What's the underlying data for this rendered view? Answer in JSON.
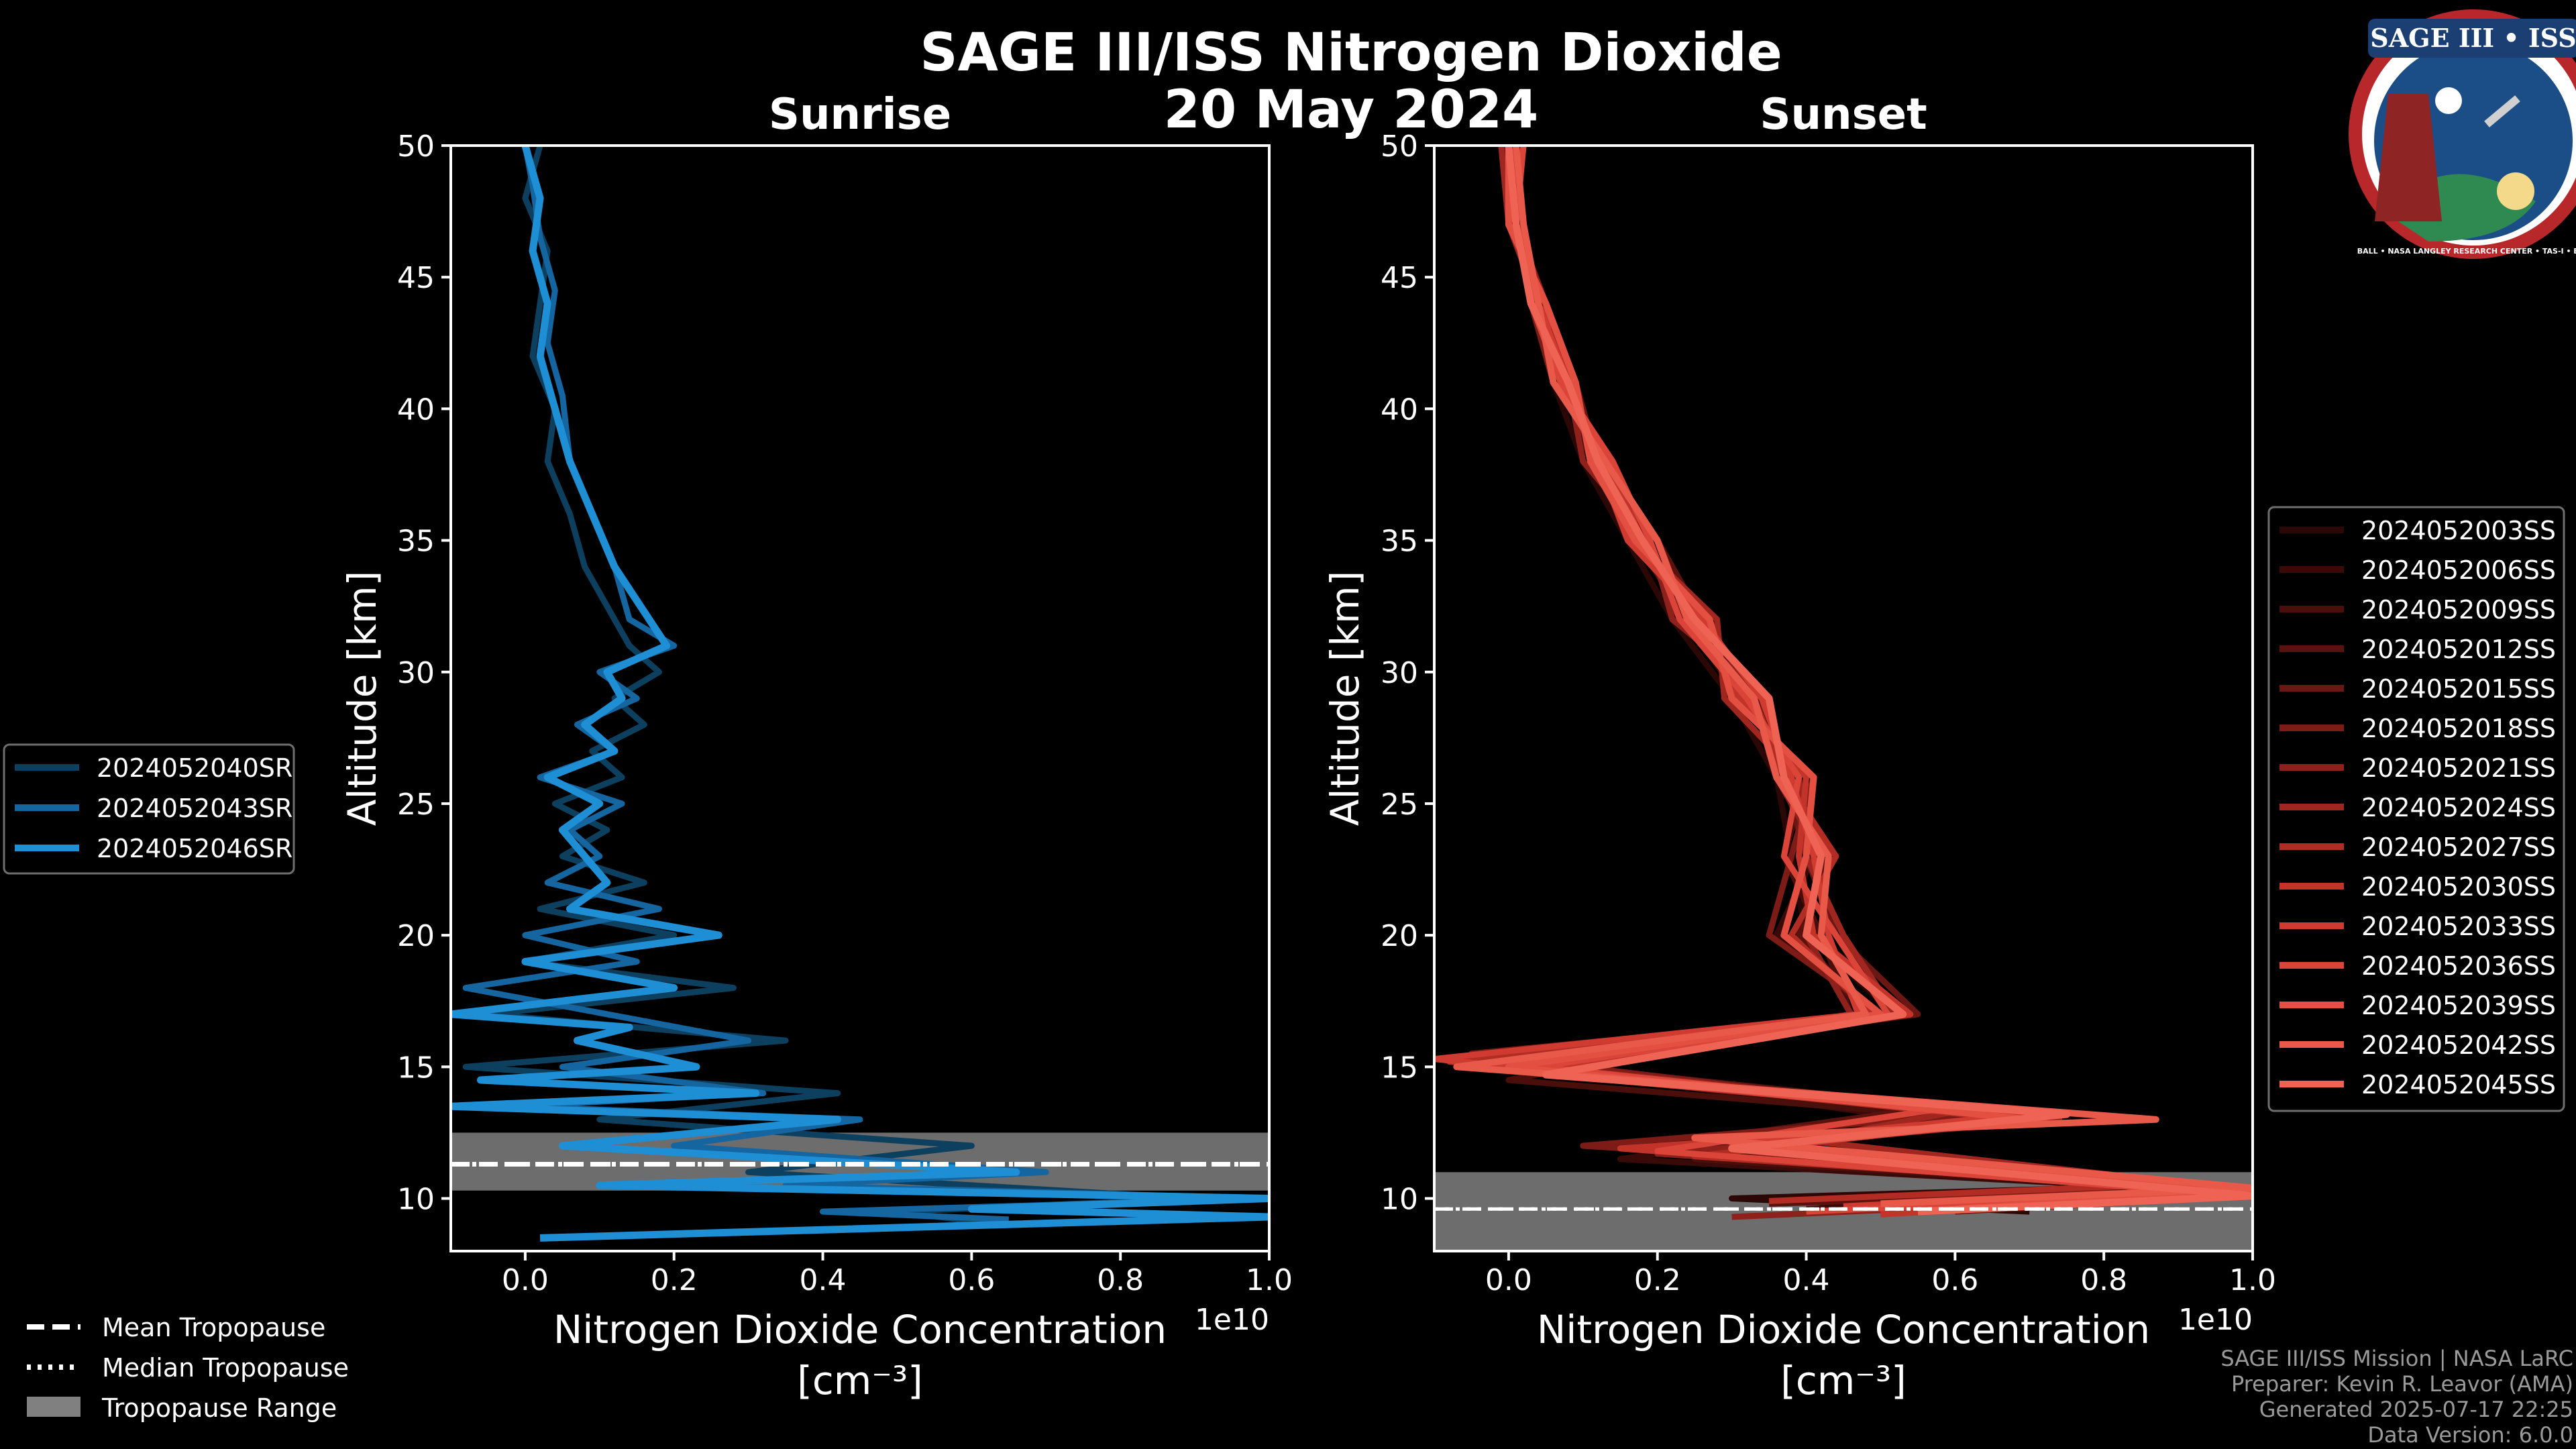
{
  "figure": {
    "title_line1": "SAGE III/ISS Nitrogen Dioxide",
    "title_line2": "20 May 2024",
    "footer": [
      "SAGE III/ISS Mission | NASA LaRC",
      "Preparer: Kevin R. Leavor (AMA)",
      "Generated 2025-07-17 22:25",
      "Data Version: 6.0.0"
    ]
  },
  "logo": {
    "text_top": "SAGE III • ISS",
    "text_ring": "BALL • NASA LANGLEY RESEARCH CENTER • TAS-I • ESA"
  },
  "tropopause_legend": [
    {
      "label": "Mean Tropopause",
      "style": "dashed"
    },
    {
      "label": "Median Tropopause",
      "style": "dotted"
    },
    {
      "label": "Tropopause Range",
      "style": "patch"
    }
  ],
  "chart_data": [
    {
      "type": "line",
      "title": "Sunrise",
      "xlabel_line1": "Nitrogen Dioxide Concentration",
      "xlabel_line2": "[cm⁻³]",
      "x_offset_text": "1e10",
      "ylabel": "Altitude [km]",
      "xlim": [
        -0.1,
        1.0
      ],
      "ylim": [
        8,
        50
      ],
      "xticks": [
        0.0,
        0.2,
        0.4,
        0.6,
        0.8,
        1.0
      ],
      "xtick_labels": [
        "0.0",
        "0.2",
        "0.4",
        "0.6",
        "0.8",
        "1.0"
      ],
      "yticks": [
        10,
        15,
        20,
        25,
        30,
        35,
        40,
        45,
        50
      ],
      "ytick_labels": [
        "10",
        "15",
        "20",
        "25",
        "30",
        "35",
        "40",
        "45",
        "50"
      ],
      "tropopause": {
        "mean": 11.3,
        "median": 11.3,
        "range": [
          10.3,
          12.5
        ]
      },
      "series": [
        {
          "name": "2024052040SR",
          "color": "#0d3f5e",
          "width": 9,
          "x": [
            0.02,
            0.0,
            0.03,
            0.02,
            0.01,
            0.04,
            0.03,
            0.06,
            0.08,
            0.12,
            0.14,
            0.18,
            0.12,
            0.16,
            0.09,
            0.13,
            0.04,
            0.11,
            0.05,
            0.16,
            0.02,
            0.2,
            0.0,
            0.28,
            -0.05,
            0.35,
            -0.08,
            0.42,
            0.1,
            0.6,
            0.3,
            0.9,
            0.5,
            0.64
          ],
          "y": [
            50,
            48,
            46,
            44,
            42,
            40,
            38,
            36,
            34,
            32,
            31,
            30,
            29,
            28,
            27,
            26,
            25,
            24,
            23,
            22,
            21,
            20,
            19,
            18,
            17,
            16,
            15,
            14,
            13,
            12,
            11,
            10,
            9.5,
            9
          ]
        },
        {
          "name": "2024052043SR",
          "color": "#1565a0",
          "width": 9,
          "x": [
            0.0,
            0.01,
            0.02,
            0.04,
            0.03,
            0.05,
            0.06,
            0.09,
            0.12,
            0.14,
            0.2,
            0.1,
            0.15,
            0.07,
            0.12,
            0.02,
            0.13,
            0.06,
            0.1,
            0.03,
            0.18,
            0.0,
            0.15,
            -0.08,
            0.3,
            0.05,
            0.32,
            -0.02,
            0.45,
            0.2,
            0.7,
            0.35,
            1.0,
            0.4,
            0.65
          ],
          "y": [
            50,
            48.5,
            46.5,
            44.5,
            42.5,
            40.5,
            38,
            36,
            34,
            32,
            31,
            30,
            29,
            28,
            27,
            26,
            25,
            24,
            23,
            22,
            21,
            20,
            19,
            18,
            16,
            15,
            14,
            13.5,
            13,
            12,
            11,
            10.5,
            10,
            9.5,
            9.2
          ]
        },
        {
          "name": "2024052046SR",
          "color": "#1e8fd4",
          "width": 11,
          "x": [
            0.0,
            0.02,
            0.01,
            0.03,
            0.02,
            0.04,
            0.06,
            0.09,
            0.12,
            0.19,
            0.11,
            0.13,
            0.08,
            0.12,
            0.03,
            0.1,
            0.05,
            0.11,
            0.06,
            0.26,
            0.0,
            0.2,
            -0.1,
            0.14,
            0.07,
            0.23,
            -0.06,
            0.31,
            -0.1,
            0.42,
            0.05,
            0.66,
            0.1,
            1.0,
            0.6,
            1.0,
            0.02
          ],
          "y": [
            50,
            48,
            46,
            44,
            42,
            40,
            38,
            36,
            34,
            31,
            30,
            29,
            28,
            27,
            26,
            25,
            24,
            22,
            21,
            20,
            19,
            18,
            17,
            16.5,
            16,
            15,
            14.5,
            14,
            13.5,
            13,
            12,
            11,
            10.5,
            10,
            9.6,
            9.3,
            8.5
          ]
        }
      ]
    },
    {
      "type": "line",
      "title": "Sunset",
      "xlabel_line1": "Nitrogen Dioxide Concentration",
      "xlabel_line2": "[cm⁻³]",
      "x_offset_text": "1e10",
      "ylabel": "Altitude [km]",
      "xlim": [
        -0.1,
        1.0
      ],
      "ylim": [
        8,
        50
      ],
      "xticks": [
        0.0,
        0.2,
        0.4,
        0.6,
        0.8,
        1.0
      ],
      "xtick_labels": [
        "0.0",
        "0.2",
        "0.4",
        "0.6",
        "0.8",
        "1.0"
      ],
      "yticks": [
        10,
        15,
        20,
        25,
        30,
        35,
        40,
        45,
        50
      ],
      "ytick_labels": [
        "10",
        "15",
        "20",
        "25",
        "30",
        "35",
        "40",
        "45",
        "50"
      ],
      "tropopause": {
        "mean": 9.6,
        "median": 9.6,
        "range": [
          8.0,
          11.0
        ]
      },
      "series": [
        {
          "name": "2024052003SS",
          "color": "#2b0705",
          "width": 9,
          "x": [
            0.0,
            0.01,
            0.03,
            0.06,
            0.1,
            0.16,
            0.22,
            0.3,
            0.36,
            0.38,
            0.4,
            0.52,
            0.1,
            0.6,
            0.2,
            0.9,
            0.3,
            0.7
          ],
          "y": [
            50,
            47,
            44,
            41,
            38,
            35,
            32,
            29,
            26,
            23,
            20,
            17,
            15,
            13,
            12,
            10.5,
            10,
            9.5
          ]
        },
        {
          "name": "2024052006SS",
          "color": "#3a0a08",
          "width": 9,
          "x": [
            0.01,
            0.0,
            0.04,
            0.07,
            0.12,
            0.18,
            0.25,
            0.33,
            0.39,
            0.41,
            0.36,
            0.5,
            0.05,
            0.55,
            0.15,
            1.0,
            0.4
          ],
          "y": [
            50,
            47,
            44,
            41,
            38,
            35,
            32,
            29,
            26,
            23,
            20,
            17,
            15,
            13,
            11.5,
            10.2,
            9.6
          ]
        },
        {
          "name": "2024052009SS",
          "color": "#4a0e0b",
          "width": 9,
          "x": [
            -0.01,
            0.02,
            0.03,
            0.08,
            0.11,
            0.17,
            0.24,
            0.31,
            0.4,
            0.37,
            0.42,
            0.46,
            0.0,
            0.65,
            0.25,
            0.95,
            0.5
          ],
          "y": [
            50,
            47,
            44,
            41,
            38,
            35,
            32,
            29,
            26,
            23,
            20,
            17,
            14.5,
            13,
            11.5,
            10.3,
            9.4
          ]
        },
        {
          "name": "2024052012SS",
          "color": "#5a120f",
          "width": 9,
          "x": [
            0.0,
            0.01,
            0.05,
            0.07,
            0.13,
            0.2,
            0.26,
            0.32,
            0.38,
            0.43,
            0.39,
            0.48,
            0.08,
            0.58,
            0.2,
            1.0,
            0.35
          ],
          "y": [
            50,
            47,
            44,
            41,
            38,
            35,
            32,
            29,
            26,
            23,
            20,
            17,
            15,
            13.5,
            12,
            10.4,
            9.8
          ]
        },
        {
          "name": "2024052015SS",
          "color": "#6b1713",
          "width": 9,
          "x": [
            0.02,
            0.0,
            0.04,
            0.09,
            0.12,
            0.18,
            0.23,
            0.34,
            0.37,
            0.4,
            0.44,
            0.55,
            0.03,
            0.7,
            0.3,
            1.0,
            0.6
          ],
          "y": [
            50,
            47,
            44,
            41,
            38,
            35,
            32,
            29,
            26,
            23,
            20,
            17,
            15,
            13,
            11.8,
            10.1,
            9.5
          ]
        },
        {
          "name": "2024052018SS",
          "color": "#7d1c17",
          "width": 9,
          "x": [
            0.0,
            0.02,
            0.03,
            0.06,
            0.14,
            0.16,
            0.27,
            0.3,
            0.41,
            0.38,
            0.35,
            0.5,
            -0.05,
            0.62,
            0.1,
            0.9,
            0.45
          ],
          "y": [
            50,
            47,
            44,
            41,
            38,
            35,
            32,
            29,
            26,
            23,
            20,
            17,
            15.5,
            13.2,
            12,
            10.6,
            9.7
          ]
        },
        {
          "name": "2024052021SS",
          "color": "#8e211b",
          "width": 9,
          "x": [
            0.01,
            0.01,
            0.05,
            0.08,
            0.1,
            0.19,
            0.22,
            0.35,
            0.36,
            0.42,
            0.4,
            0.46,
            0.05,
            0.74,
            0.2,
            1.0,
            0.3
          ],
          "y": [
            50,
            47,
            44,
            41,
            38,
            35,
            32,
            29,
            26,
            23,
            20,
            17,
            15,
            13,
            11.7,
            10.2,
            9.3
          ]
        },
        {
          "name": "2024052024SS",
          "color": "#a0271f",
          "width": 9,
          "x": [
            -0.01,
            0.0,
            0.04,
            0.07,
            0.12,
            0.17,
            0.28,
            0.29,
            0.39,
            0.4,
            0.45,
            0.52,
            0.0,
            0.6,
            0.4,
            1.0,
            0.55
          ],
          "y": [
            50,
            47,
            44,
            41,
            38,
            35,
            32,
            29,
            26,
            23,
            20,
            17,
            15,
            13.3,
            12.2,
            10.3,
            9.6
          ]
        },
        {
          "name": "2024052027SS",
          "color": "#b12d24",
          "width": 9,
          "x": [
            0.0,
            0.02,
            0.03,
            0.09,
            0.11,
            0.2,
            0.24,
            0.33,
            0.37,
            0.44,
            0.38,
            0.49,
            -0.08,
            0.68,
            0.25,
            0.85,
            0.35
          ],
          "y": [
            50,
            47,
            44,
            41,
            38,
            35,
            32,
            29,
            26,
            23,
            20,
            17,
            15.2,
            13,
            11.6,
            10.5,
            9.9
          ]
        },
        {
          "name": "2024052030SS",
          "color": "#c2342a",
          "width": 9,
          "x": [
            0.01,
            0.0,
            0.05,
            0.06,
            0.13,
            0.18,
            0.25,
            0.31,
            0.4,
            0.39,
            0.41,
            0.54,
            0.02,
            0.72,
            0.15,
            1.0,
            0.5
          ],
          "y": [
            50,
            47,
            44,
            41,
            38,
            35,
            32,
            29,
            26,
            23,
            20,
            17,
            14.8,
            13,
            11.9,
            10.1,
            9.4
          ]
        },
        {
          "name": "2024052033SS",
          "color": "#d03b31",
          "width": 9,
          "x": [
            0.0,
            0.01,
            0.04,
            0.08,
            0.12,
            0.16,
            0.26,
            0.34,
            0.38,
            0.41,
            0.43,
            0.47,
            -0.1,
            0.66,
            0.3,
            1.0,
            0.45
          ],
          "y": [
            50,
            47,
            44,
            41,
            38,
            35,
            32,
            29,
            26,
            23,
            20,
            17,
            15.3,
            13.1,
            12.1,
            10.4,
            9.7
          ]
        },
        {
          "name": "2024052036SS",
          "color": "#db4438",
          "width": 9,
          "x": [
            0.02,
            0.01,
            0.03,
            0.07,
            0.14,
            0.19,
            0.23,
            0.32,
            0.39,
            0.37,
            0.44,
            0.51,
            0.04,
            0.58,
            0.2,
            0.95,
            0.4
          ],
          "y": [
            50,
            47,
            44,
            41,
            38,
            35,
            32,
            29,
            26,
            23,
            20,
            17,
            15,
            13.4,
            11.8,
            10.2,
            9.5
          ]
        },
        {
          "name": "2024052039SS",
          "color": "#e34f41",
          "width": 10,
          "x": [
            0.0,
            0.0,
            0.05,
            0.09,
            0.11,
            0.17,
            0.27,
            0.3,
            0.41,
            0.4,
            0.37,
            0.5,
            0.0,
            0.7,
            0.35,
            1.0,
            0.6
          ],
          "y": [
            50,
            47,
            44,
            41,
            38,
            35,
            32,
            29,
            26,
            23,
            20,
            17,
            15,
            13,
            12,
            10.3,
            9.6
          ]
        },
        {
          "name": "2024052042SS",
          "color": "#e9594a",
          "width": 10,
          "x": [
            0.01,
            0.02,
            0.04,
            0.06,
            0.13,
            0.2,
            0.24,
            0.33,
            0.36,
            0.43,
            0.42,
            0.48,
            -0.07,
            0.87,
            0.25,
            1.0,
            0.5
          ],
          "y": [
            50,
            47,
            44,
            41,
            38,
            35,
            32,
            29,
            26,
            23,
            20,
            17,
            15,
            13,
            12.3,
            10.4,
            9.8
          ]
        },
        {
          "name": "2024052045SS",
          "color": "#ee6353",
          "width": 11,
          "x": [
            0.0,
            0.01,
            0.03,
            0.08,
            0.12,
            0.18,
            0.25,
            0.35,
            0.37,
            0.42,
            0.4,
            0.53,
            0.05,
            0.75,
            0.3,
            1.0,
            0.55
          ],
          "y": [
            50,
            47,
            44,
            41,
            38,
            35,
            32,
            29,
            26,
            23,
            20,
            17,
            14.7,
            13.2,
            11.9,
            10.1,
            9.5
          ]
        }
      ]
    }
  ]
}
